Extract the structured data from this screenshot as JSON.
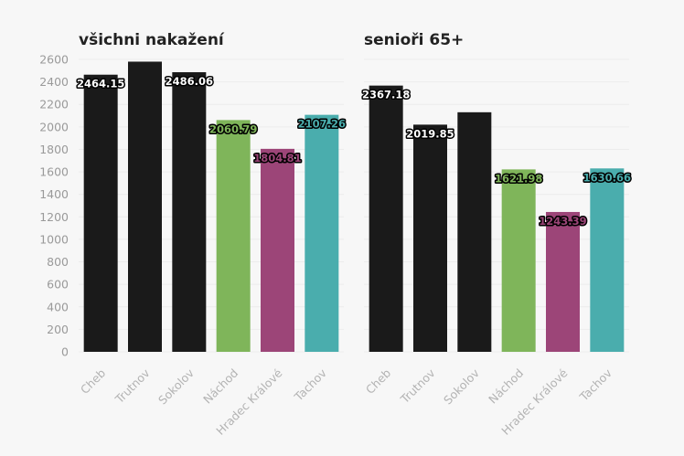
{
  "chart_data": [
    {
      "type": "bar",
      "title": "všichni nakažení",
      "categories": [
        "Cheb",
        "Trutnov",
        "Sokolov",
        "Náchod",
        "Hradec Králové",
        "Tachov"
      ],
      "values": [
        2464.15,
        2580,
        2486.06,
        2060.79,
        1804.81,
        2107.26
      ],
      "labels": [
        "2464.15",
        "",
        "2486.06",
        "2060.79",
        "1804.81",
        "2107.26"
      ],
      "colors": [
        "#1a1a1a",
        "#1a1a1a",
        "#1a1a1a",
        "#7fb55a",
        "#9c4578",
        "#4aadad"
      ],
      "ylim": [
        0,
        2600
      ],
      "yticks": [
        "0",
        "200",
        "400",
        "600",
        "800",
        "1000",
        "1200",
        "1400",
        "1600",
        "1800",
        "2000",
        "2200",
        "2400",
        "2600"
      ],
      "grid": true
    },
    {
      "type": "bar",
      "title": "senioři 65+",
      "categories": [
        "Cheb",
        "Trutnov",
        "Sokolov",
        "Náchod",
        "Hradec Králové",
        "Tachov"
      ],
      "values": [
        2367.18,
        2019.85,
        2130,
        1621.98,
        1243.39,
        1630.66
      ],
      "labels": [
        "2367.18",
        "2019.85",
        "",
        "1621.98",
        "1243.39",
        "1630.66"
      ],
      "colors": [
        "#1a1a1a",
        "#1a1a1a",
        "#1a1a1a",
        "#7fb55a",
        "#9c4578",
        "#4aadad"
      ],
      "ylim": [
        0,
        2600
      ],
      "grid": true
    }
  ]
}
